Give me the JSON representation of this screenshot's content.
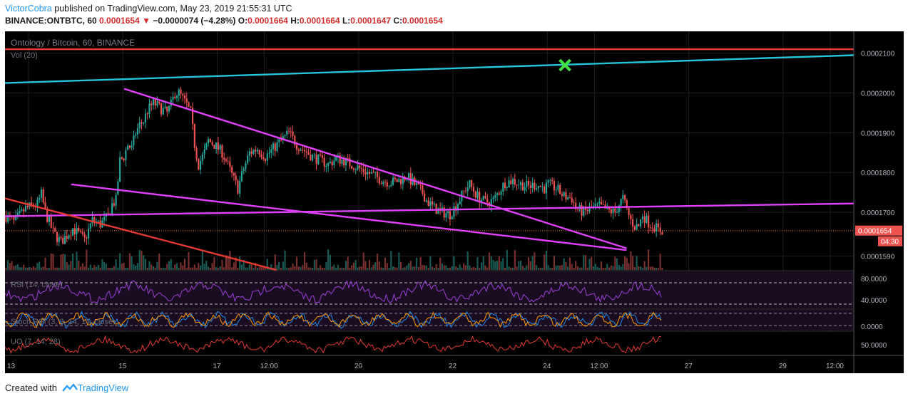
{
  "header": {
    "author": "VictorCobra",
    "published_text": " published on TradingView.com, May 23, 2019 21:55:31 UTC",
    "symbol": "BINANCE:ONTBTC, 60",
    "last": "0.0001654",
    "change_arrow": "▼",
    "change": "−0.0000074 (−4.28%)",
    "o_label": "O:",
    "o_value": "0.0001664",
    "h_label": "H:",
    "h_value": "0.0001664",
    "l_label": "L:",
    "l_value": "0.0001647",
    "c_label": "C:",
    "c_value": "0.0001654"
  },
  "chart_data": {
    "type": "candlestick",
    "title": "Ontology / Bitcoin, 60, BINANCE",
    "subtitle": "Vol (20)",
    "y_axis": {
      "ticks": [
        "0.0002100",
        "0.0002000",
        "0.0001900",
        "0.0001800",
        "0.0001700",
        "0.0001590"
      ],
      "tick_values": [
        0.00021,
        0.0002,
        0.00019,
        0.00018,
        0.00017,
        0.000159
      ],
      "range": [
        0.0001555,
        0.0002155
      ],
      "last_price_label": "0.0001654",
      "last_price": 0.0001654,
      "countdown_label": "04:30"
    },
    "x_axis": {
      "labels": [
        "13",
        "15",
        "17",
        "12:00",
        "20",
        "22",
        "24",
        "12:00",
        "27",
        "29",
        "12:00"
      ],
      "label_positions_hours": [
        12,
        60,
        108,
        132,
        180,
        228,
        276,
        300,
        348,
        396,
        420
      ],
      "range_hours": [
        0,
        432
      ]
    },
    "price_points": [
      [
        0,
        0.000169
      ],
      [
        4,
        0.0001675
      ],
      [
        10,
        0.000171
      ],
      [
        16,
        0.000172
      ],
      [
        18,
        0.0001745
      ],
      [
        20,
        0.00017
      ],
      [
        24,
        0.000165
      ],
      [
        28,
        0.0001625
      ],
      [
        34,
        0.000166
      ],
      [
        40,
        0.000163
      ],
      [
        44,
        0.000168
      ],
      [
        48,
        0.000167
      ],
      [
        52,
        0.000169
      ],
      [
        54,
        0.000172
      ],
      [
        56,
        0.000173
      ],
      [
        58,
        0.000183
      ],
      [
        60,
        0.000184
      ],
      [
        62,
        0.000187
      ],
      [
        64,
        0.000186
      ],
      [
        66,
        0.00019
      ],
      [
        68,
        0.000192
      ],
      [
        70,
        0.000193
      ],
      [
        72,
        0.0001955
      ],
      [
        75,
        0.0001975
      ],
      [
        79,
        0.000196
      ],
      [
        82,
        0.000195
      ],
      [
        84,
        0.000197
      ],
      [
        86,
        0.0002
      ],
      [
        88,
        0.0002
      ],
      [
        90,
        0.0001985
      ],
      [
        92,
        0.000197
      ],
      [
        94,
        0.000195
      ],
      [
        96,
        0.000187
      ],
      [
        98,
        0.000182
      ],
      [
        101,
        0.000185
      ],
      [
        103,
        0.000188
      ],
      [
        106,
        0.000187
      ],
      [
        110,
        0.000185
      ],
      [
        112,
        0.000183
      ],
      [
        114,
        0.0001805
      ],
      [
        118,
        0.000176
      ],
      [
        121,
        0.000181
      ],
      [
        124,
        0.000185
      ],
      [
        128,
        0.000186
      ],
      [
        132,
        0.000184
      ],
      [
        136,
        0.000186
      ],
      [
        140,
        0.000188
      ],
      [
        144,
        0.00019
      ],
      [
        148,
        0.000187
      ],
      [
        152,
        0.0001855
      ],
      [
        156,
        0.000184
      ],
      [
        160,
        0.000183
      ],
      [
        164,
        0.000182
      ],
      [
        168,
        0.0001835
      ],
      [
        172,
        0.000183
      ],
      [
        176,
        0.000182
      ],
      [
        180,
        0.000181
      ],
      [
        184,
        0.00018
      ],
      [
        188,
        0.000179
      ],
      [
        192,
        0.000178
      ],
      [
        196,
        0.0001775
      ],
      [
        200,
        0.000178
      ],
      [
        204,
        0.000179
      ],
      [
        208,
        0.000177
      ],
      [
        212,
        0.000175
      ],
      [
        214,
        0.000173
      ],
      [
        218,
        0.000171
      ],
      [
        222,
        0.00017
      ],
      [
        226,
        0.0001695
      ],
      [
        230,
        0.0001725
      ],
      [
        234,
        0.000176
      ],
      [
        236,
        0.000177
      ],
      [
        240,
        0.000174
      ],
      [
        244,
        0.0001725
      ],
      [
        248,
        0.000173
      ],
      [
        252,
        0.000176
      ],
      [
        254,
        0.0001775
      ],
      [
        258,
        0.000178
      ],
      [
        262,
        0.000177
      ],
      [
        266,
        0.0001765
      ],
      [
        270,
        0.000177
      ],
      [
        274,
        0.000176
      ],
      [
        276,
        0.000177
      ],
      [
        280,
        0.000176
      ],
      [
        284,
        0.000174
      ],
      [
        288,
        0.0001735
      ],
      [
        290,
        0.000171
      ],
      [
        294,
        0.00017
      ],
      [
        298,
        0.000171
      ],
      [
        302,
        0.0001715
      ],
      [
        306,
        0.0001705
      ],
      [
        310,
        0.00017
      ],
      [
        312,
        0.000172
      ],
      [
        314,
        0.0001735
      ],
      [
        316,
        0.0001705
      ],
      [
        318,
        0.000168
      ],
      [
        320,
        0.0001665
      ],
      [
        322,
        0.0001665
      ],
      [
        324,
        0.0001695
      ],
      [
        326,
        0.000168
      ],
      [
        328,
        0.000167
      ],
      [
        330,
        0.0001665
      ],
      [
        332,
        0.0001655
      ],
      [
        334,
        0.0001654
      ]
    ],
    "trendlines": [
      {
        "name": "upper-horizontal",
        "color": "#e53935",
        "from": [
          0,
          0.000211
        ],
        "to": [
          432,
          0.000211
        ]
      },
      {
        "name": "upper-channel",
        "color": "#26c6da",
        "from": [
          0,
          0.0002025
        ],
        "to": [
          432,
          0.0002095
        ]
      },
      {
        "name": "wedge-top",
        "color": "#e040fb",
        "from": [
          61,
          0.000201
        ],
        "to": [
          316,
          0.000161
        ]
      },
      {
        "name": "wedge-bottom",
        "color": "#e040fb",
        "from": [
          34,
          0.000177
        ],
        "to": [
          316,
          0.0001605
        ]
      },
      {
        "name": "support-rising",
        "color": "#e040fb",
        "from": [
          0,
          0.000169
        ],
        "to": [
          432,
          0.0001722
        ]
      },
      {
        "name": "downtrend",
        "color": "#e53935",
        "from": [
          0,
          0.0001735
        ],
        "to": [
          138,
          0.0001555
        ]
      }
    ],
    "target_marker": {
      "hour": 285,
      "price": 0.000207,
      "color": "#43e243"
    },
    "indicators": {
      "rsi": {
        "label": "RSI (14, close)",
        "ticks": [
          "80.0000",
          "40.0000"
        ]
      },
      "stoch": {
        "label": "Stoch RSI (3, 3, 14, 14, close)",
        "ticks": [
          "0.0000"
        ]
      },
      "uo": {
        "label": "UO (7, 14, 28)",
        "ticks": [
          "50.0000"
        ]
      }
    },
    "grid": true,
    "colors": {
      "up": "#26a69a",
      "down": "#ef5350",
      "background": "#000000"
    }
  },
  "footer": {
    "created_with": "Created with",
    "brand": "TradingView"
  }
}
